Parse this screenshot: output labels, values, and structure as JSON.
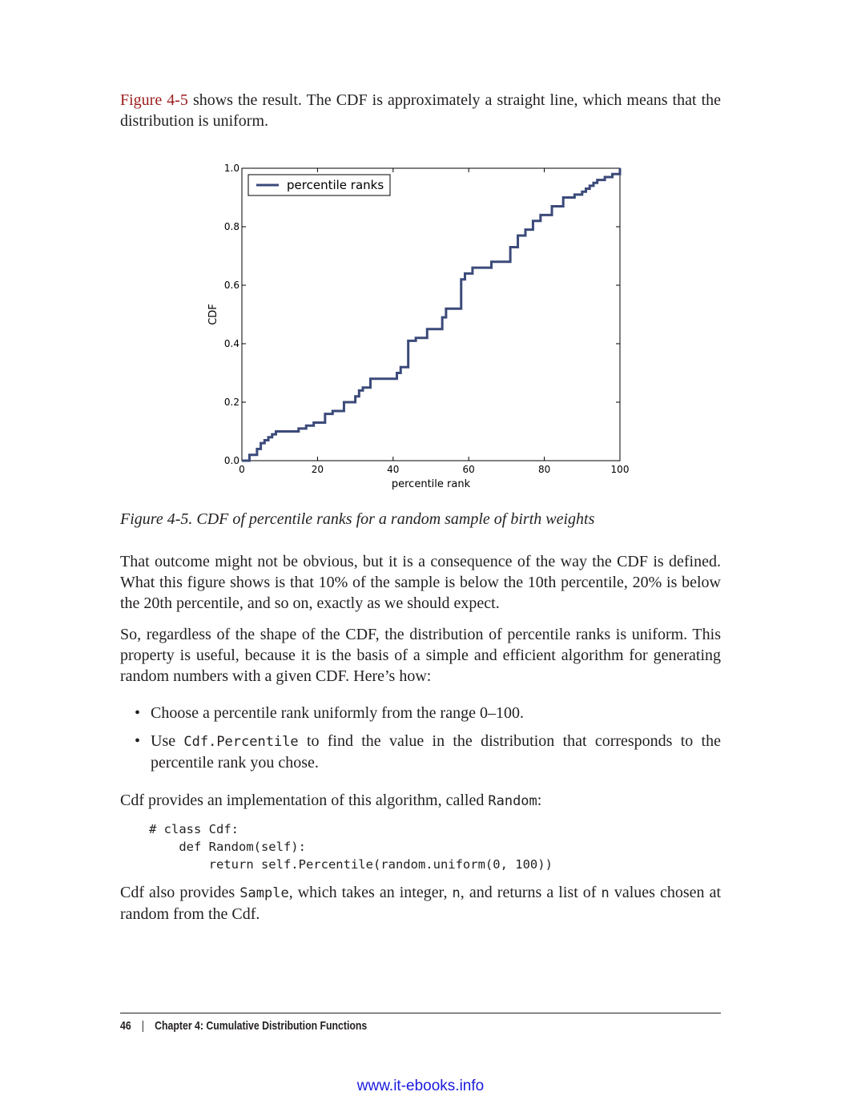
{
  "p1": {
    "xref": "Figure 4-5",
    "text": " shows the result. The CDF is approximately a straight line, which means that the distribution is uniform."
  },
  "caption": "Figure 4-5. CDF of percentile ranks for a random sample of birth weights",
  "p2": "That outcome might not be obvious, but it is a consequence of the way the CDF is defined. What this figure shows is that 10% of the sample is below the 10th percentile, 20% is below the 20th percentile, and so on, exactly as we should expect.",
  "p3": "So, regardless of the shape of the CDF, the distribution of percentile ranks is uniform. This property is useful, because it is the basis of a simple and efficient algorithm for generating random numbers with a given CDF. Here’s how:",
  "bullets": {
    "bullet_char": "•",
    "b1": "Choose a percentile rank uniformly from the range 0–100.",
    "b2_pre": "Use ",
    "b2_code": "Cdf.Percentile",
    "b2_post": " to find the value in the distribution that corresponds to the percentile rank you chose."
  },
  "p4": {
    "pre": "Cdf provides an implementation of this algorithm, called ",
    "code": "Random",
    "post": ":"
  },
  "code_block": "# class Cdf:\n    def Random(self):\n        return self.Percentile(random.uniform(0, 100))",
  "p5": {
    "pre": "Cdf also provides ",
    "code1": "Sample",
    "mid1": ", which takes an integer, ",
    "code2": "n",
    "mid2": ", and returns a list of ",
    "code3": "n",
    "post": " values chosen at random from the Cdf."
  },
  "footer": {
    "page_number": "46",
    "separator": "|",
    "chapter": "Chapter 4: Cumulative Distribution Functions"
  },
  "site": "www.it-ebooks.info",
  "colors": {
    "text": "#231f20",
    "xref": "#9b1c1c",
    "line": "#3b4a7a",
    "site_link": "#1a1adf"
  },
  "chart_data": {
    "type": "line",
    "step": true,
    "title": "",
    "xlabel": "percentile rank",
    "ylabel": "CDF",
    "xlim": [
      0,
      100
    ],
    "ylim": [
      0,
      1.0
    ],
    "xticks": [
      "0",
      "20",
      "40",
      "60",
      "80",
      "100"
    ],
    "yticks": [
      "0.0",
      "0.2",
      "0.4",
      "0.6",
      "0.8",
      "1.0"
    ],
    "grid": false,
    "legend": {
      "position": "top-left"
    },
    "series": [
      {
        "name": "percentile ranks",
        "x": [
          0,
          2,
          4,
          5,
          6,
          7,
          8,
          9,
          15,
          17,
          19,
          22,
          24,
          27,
          30,
          31,
          32,
          34,
          41,
          42,
          44,
          46,
          49,
          53,
          54,
          58,
          59,
          61,
          66,
          71,
          73,
          75,
          77,
          79,
          82,
          85,
          88,
          90,
          91,
          92,
          93,
          94,
          96,
          98,
          100
        ],
        "y": [
          0.0,
          0.02,
          0.04,
          0.06,
          0.07,
          0.08,
          0.09,
          0.1,
          0.11,
          0.12,
          0.13,
          0.16,
          0.17,
          0.2,
          0.22,
          0.24,
          0.25,
          0.28,
          0.3,
          0.32,
          0.41,
          0.42,
          0.45,
          0.49,
          0.52,
          0.62,
          0.64,
          0.66,
          0.68,
          0.73,
          0.77,
          0.79,
          0.82,
          0.84,
          0.87,
          0.9,
          0.91,
          0.92,
          0.93,
          0.94,
          0.95,
          0.96,
          0.97,
          0.98,
          1.0
        ]
      }
    ]
  }
}
